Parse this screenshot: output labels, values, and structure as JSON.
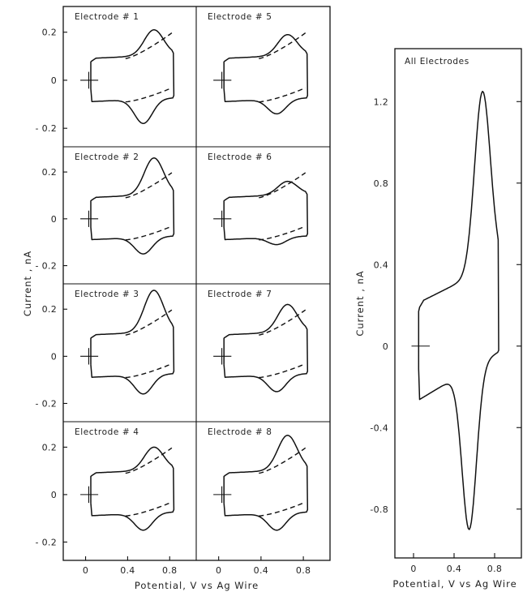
{
  "chart_data": [
    {
      "type": "line",
      "grid": "4 rows x 2 columns of panels",
      "panels": [
        {
          "title": "Electrode # 1",
          "ox_peak": {
            "x": 0.65,
            "y": 0.21
          },
          "red_peak": {
            "x": 0.55,
            "y": -0.18
          }
        },
        {
          "title": "Electrode # 5",
          "ox_peak": {
            "x": 0.65,
            "y": 0.19
          },
          "red_peak": {
            "x": 0.55,
            "y": -0.14
          }
        },
        {
          "title": "Electrode # 2",
          "ox_peak": {
            "x": 0.65,
            "y": 0.26
          },
          "red_peak": {
            "x": 0.55,
            "y": -0.15
          }
        },
        {
          "title": "Electrode # 6",
          "ox_peak": {
            "x": 0.65,
            "y": 0.16
          },
          "red_peak": {
            "x": 0.55,
            "y": -0.11
          }
        },
        {
          "title": "Electrode # 3",
          "ox_peak": {
            "x": 0.65,
            "y": 0.28
          },
          "red_peak": {
            "x": 0.55,
            "y": -0.16
          }
        },
        {
          "title": "Electrode # 7",
          "ox_peak": {
            "x": 0.65,
            "y": 0.22
          },
          "red_peak": {
            "x": 0.55,
            "y": -0.15
          }
        },
        {
          "title": "Electrode # 4",
          "ox_peak": {
            "x": 0.65,
            "y": 0.2
          },
          "red_peak": {
            "x": 0.55,
            "y": -0.15
          }
        },
        {
          "title": "Electrode # 8",
          "ox_peak": {
            "x": 0.65,
            "y": 0.25
          },
          "red_peak": {
            "x": 0.55,
            "y": -0.15
          }
        }
      ],
      "x_ticks": [
        "0",
        "0.4",
        "0.8"
      ],
      "y_ticks": [
        "0.2",
        "0",
        "- 0.2"
      ],
      "xlim": [
        -0.12,
        0.96
      ],
      "ylim": [
        -0.25,
        0.28
      ],
      "ylabel": "Current , nA",
      "xlabel": "Potential, V vs Ag Wire",
      "baseline": {
        "upper": 0.09,
        "lower": -0.09,
        "upper_at_0_8": 0.2,
        "lower_at_0_8": -0.03
      }
    },
    {
      "type": "line",
      "title": "All Electrodes",
      "ox_peak": {
        "x": 0.68,
        "y": 1.25
      },
      "red_peak": {
        "x": 0.55,
        "y": -0.9
      },
      "x_ticks": [
        "0",
        "0.4",
        "0.8"
      ],
      "y_ticks": [
        "1.2",
        "0.8",
        "0.4",
        "0",
        "-0.4",
        "-0.8"
      ],
      "xlim": [
        -0.12,
        1.0
      ],
      "ylim": [
        -1.0,
        1.42
      ],
      "ylabel": "Current , nA",
      "xlabel": "Potential, V vs Ag Wire"
    }
  ]
}
